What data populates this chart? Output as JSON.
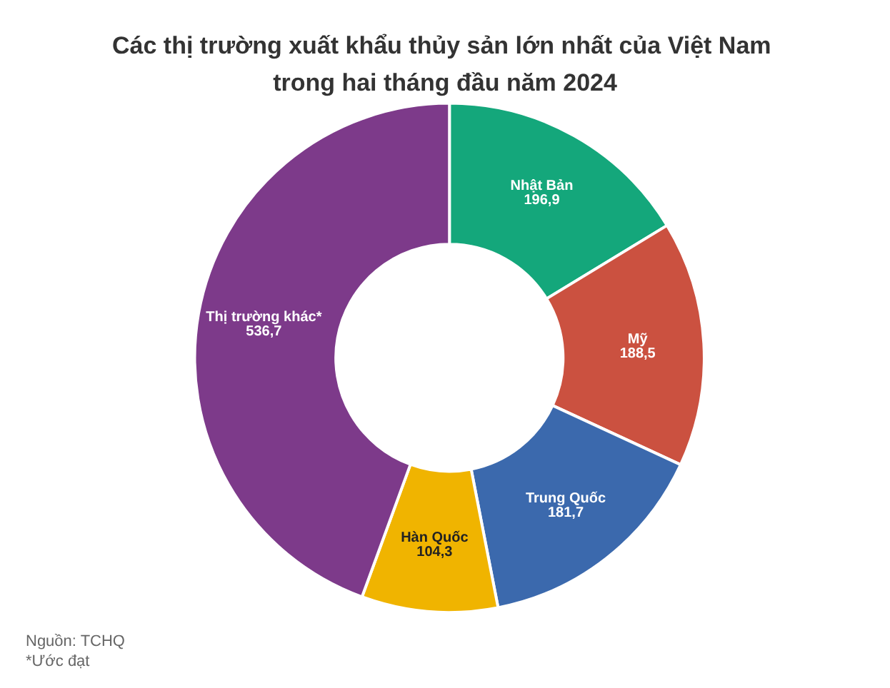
{
  "chart_data": {
    "type": "donut",
    "title": "Các thị trường xuất khẩu thủy sản lớn nhất của Việt Nam trong hai tháng đầu năm 2024",
    "categories": [
      "Nhật Bản",
      "Mỹ",
      "Trung Quốc",
      "Hàn Quốc",
      "Thị trường khác*"
    ],
    "values": [
      196.9,
      188.5,
      181.7,
      104.3,
      536.7
    ],
    "value_labels": [
      "196,9",
      "188,5",
      "181,7",
      "104,3",
      "536,7"
    ],
    "colors": [
      "#14a77b",
      "#cb5140",
      "#3b69ad",
      "#f0b400",
      "#7d3a8a"
    ],
    "legend": false,
    "annotations": [
      "Nguồn: TCHQ",
      "*Ước đạt"
    ]
  }
}
